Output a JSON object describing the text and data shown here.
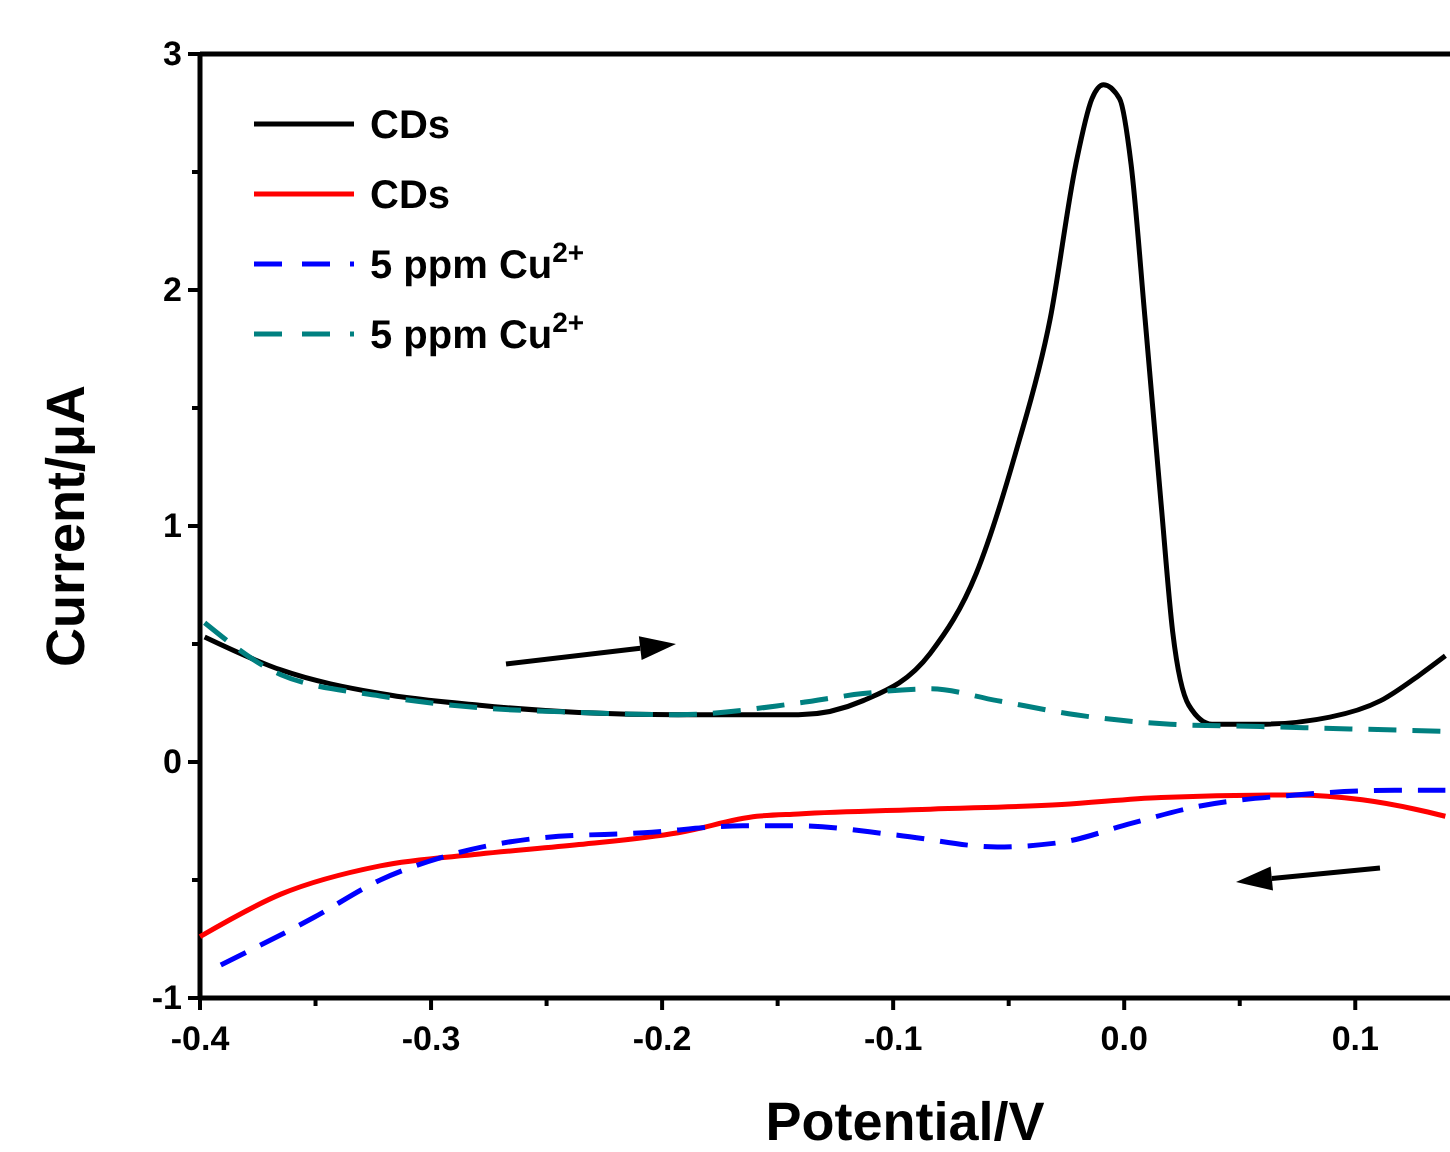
{
  "chart_data": {
    "type": "line",
    "xlabel": "Potential/V",
    "ylabel": "Current/μA",
    "xlim": [
      -0.4,
      0.141
    ],
    "xticks": [
      -0.4,
      {
        "value": -0.35,
        "label": null
      },
      -0.3,
      {
        "value": -0.25,
        "label": null
      },
      -0.2,
      {
        "value": -0.15,
        "label": null
      },
      -0.1,
      {
        "value": -0.05,
        "label": null
      },
      "0.0",
      {
        "value": 0.05,
        "label": null
      },
      0.1
    ],
    "ylim": [
      -1,
      3
    ],
    "yticks": [
      -1,
      {
        "value": -0.5,
        "label": null
      },
      0,
      {
        "value": 0.5,
        "label": null
      },
      1,
      {
        "value": 1.5,
        "label": null
      },
      2,
      {
        "value": 2.5,
        "label": null
      },
      3
    ],
    "grid": false,
    "legend": "top left",
    "marker": "none",
    "series": [
      {
        "name": "CDs",
        "color": "#000000",
        "line_style": "solid",
        "x": [
          -0.398,
          -0.365,
          -0.322,
          -0.279,
          -0.236,
          -0.193,
          -0.141,
          -0.113,
          -0.084,
          -0.064,
          -0.047,
          -0.032,
          -0.021,
          -0.014,
          -0.009,
          -0.002,
          0.003,
          0.009,
          0.016,
          0.021,
          0.028,
          0.038,
          0.059,
          0.089,
          0.111,
          0.128,
          0.139
        ],
        "values": [
          0.53,
          0.39,
          0.29,
          0.24,
          0.21,
          0.2,
          0.2,
          0.26,
          0.46,
          0.8,
          1.31,
          1.88,
          2.53,
          2.81,
          2.87,
          2.81,
          2.53,
          1.88,
          1.09,
          0.55,
          0.24,
          0.16,
          0.16,
          0.19,
          0.26,
          0.37,
          0.45
        ]
      },
      {
        "name": "CDs",
        "color": "#ff0000",
        "line_style": "solid",
        "x": [
          -0.4,
          -0.365,
          -0.322,
          -0.279,
          -0.236,
          -0.193,
          -0.159,
          -0.141,
          -0.084,
          -0.027,
          0.016,
          0.074,
          0.103,
          0.126,
          0.139
        ],
        "values": [
          -0.74,
          -0.56,
          -0.44,
          -0.39,
          -0.35,
          -0.3,
          -0.23,
          -0.22,
          -0.2,
          -0.18,
          -0.15,
          -0.14,
          -0.16,
          -0.2,
          -0.23
        ]
      },
      {
        "name": "5 ppm Cu$^{2+}$",
        "color": "#0000ff",
        "line_style": "dashed",
        "x": [
          -0.391,
          -0.351,
          -0.322,
          -0.294,
          -0.251,
          -0.208,
          -0.165,
          -0.141,
          -0.098,
          -0.055,
          -0.027,
          0.003,
          0.031,
          0.074,
          0.117,
          0.139
        ],
        "values": [
          -0.86,
          -0.66,
          -0.5,
          -0.4,
          -0.32,
          -0.3,
          -0.27,
          -0.27,
          -0.31,
          -0.36,
          -0.34,
          -0.26,
          -0.19,
          -0.14,
          -0.12,
          -0.12
        ]
      },
      {
        "name": "5 ppm Cu$^{2+}$",
        "color": "#008080",
        "line_style": "dashed",
        "x": [
          -0.398,
          -0.365,
          -0.322,
          -0.279,
          -0.236,
          -0.193,
          -0.141,
          -0.113,
          -0.084,
          -0.055,
          -0.021,
          0.02,
          0.059,
          0.139
        ],
        "values": [
          0.59,
          0.37,
          0.28,
          0.23,
          0.21,
          0.2,
          0.25,
          0.29,
          0.31,
          0.26,
          0.2,
          0.16,
          0.15,
          0.13
        ]
      }
    ]
  }
}
